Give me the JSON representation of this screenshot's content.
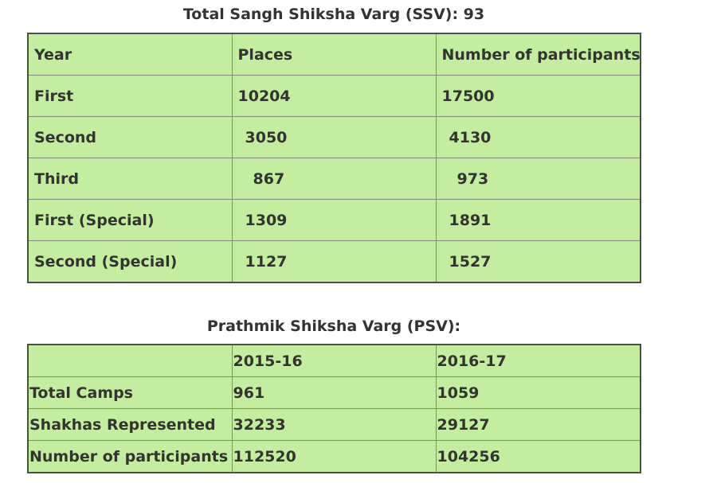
{
  "ssv": {
    "title": "Total Sangh Shiksha Varg (SSV): 93",
    "headers": [
      "Year",
      "Places",
      "Number of participants"
    ],
    "rows": [
      {
        "year": "First",
        "places": "10204",
        "participants": "17500"
      },
      {
        "year": "Second",
        "places": "3050",
        "participants": "4130"
      },
      {
        "year": "Third",
        "places": "867",
        "participants": "973"
      },
      {
        "year": "First (Special)",
        "places": "1309",
        "participants": "1891"
      },
      {
        "year": "Second (Special)",
        "places": "1127",
        "participants": "1527"
      }
    ]
  },
  "psv": {
    "title": "Prathmik Shiksha Varg (PSV):",
    "headers": [
      "",
      "2015-16",
      "2016-17"
    ],
    "rows": [
      {
        "label": "Total Camps",
        "y2015": "961",
        "y2016": "1059"
      },
      {
        "label": "Shakhas Represented",
        "y2015": "32233",
        "y2016": "29127"
      },
      {
        "label": "Number of participants",
        "y2015": "112520",
        "y2016": "104256"
      }
    ]
  },
  "colors": {
    "cell_background": "#c3eea0",
    "text": "#333333",
    "border": "#4a4f49"
  }
}
